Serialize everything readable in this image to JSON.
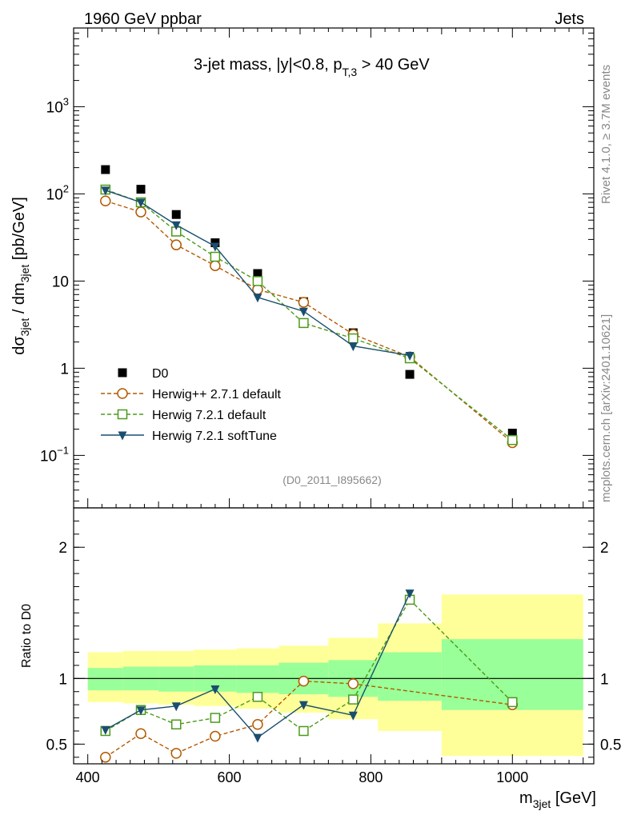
{
  "header": {
    "left": "1960 GeV ppbar",
    "right": "Jets"
  },
  "side_text": {
    "rivet": "Rivet 4.1.0, ≥ 3.7M events",
    "mcplots": "mcplots.cern.ch [arXiv:2401.10621]"
  },
  "chart_data": [
    {
      "type": "scatter",
      "panel": "main",
      "title": "3-jet mass, |y|<0.8, p",
      "title_sub": "T,3",
      "title_tail": " > 40 GeV",
      "watermark": "(D0_2011_I895662)",
      "ylabel": "dσ",
      "ylabel_sub1": "3jet",
      "ylabel_mid": " / dm",
      "ylabel_sub2": "3jet",
      "ylabel_tail": " [pb/GeV]",
      "yscale": "log",
      "ylim": [
        0.025,
        8000
      ],
      "xlim": [
        380,
        1115
      ],
      "y_ticks": [
        {
          "value": 1000,
          "base": "10",
          "exp": "3"
        },
        {
          "value": 100,
          "base": "10",
          "exp": "2"
        },
        {
          "value": 10,
          "base": "10",
          "exp": ""
        },
        {
          "value": 1,
          "base": "1",
          "exp": ""
        },
        {
          "value": 0.1,
          "base": "10",
          "exp": "−1"
        }
      ],
      "legend_position": "lower-left",
      "series": [
        {
          "name": "D0",
          "color": "#000000",
          "marker": "square-filled",
          "line": "none",
          "x": [
            425,
            475,
            525,
            580,
            640,
            705,
            775,
            855,
            1000
          ],
          "y": [
            190,
            113,
            58,
            27.5,
            12.2,
            5.8,
            2.55,
            0.85,
            0.18
          ]
        },
        {
          "name": "Herwig++ 2.7.1 default",
          "color": "#b35900",
          "marker": "circle-open",
          "line": "dashed",
          "x": [
            425,
            475,
            525,
            580,
            640,
            705,
            775,
            855,
            1000
          ],
          "y": [
            83,
            62,
            26,
            15,
            8,
            5.7,
            2.45,
            1.35,
            0.14
          ]
        },
        {
          "name": "Herwig 7.2.1 default",
          "color": "#4c9a1a",
          "marker": "square-open",
          "line": "dashed",
          "x": [
            425,
            475,
            525,
            580,
            640,
            705,
            775,
            855,
            1000
          ],
          "y": [
            112,
            80,
            37,
            19,
            10,
            3.3,
            2.2,
            1.3,
            0.15
          ]
        },
        {
          "name": "Herwig 7.2.1 softTune",
          "color": "#1a4e6e",
          "marker": "triangle-down-filled",
          "line": "solid",
          "x": [
            425,
            475,
            525,
            580,
            640,
            705,
            775,
            855
          ],
          "y": [
            110,
            80,
            44,
            25,
            6.5,
            4.5,
            1.8,
            1.4
          ]
        }
      ]
    },
    {
      "type": "scatter",
      "panel": "ratio",
      "ylabel": "Ratio to D0",
      "xlabel": "m",
      "xlabel_sub": "3jet",
      "xlabel_tail": " [GeV]",
      "ylim": [
        0.35,
        2.3
      ],
      "xlim": [
        380,
        1115
      ],
      "x_ticks": [
        400,
        600,
        800,
        1000
      ],
      "y_ticks": [
        0.5,
        1,
        2
      ],
      "bands": {
        "x_edges": [
          400,
          450,
          500,
          550,
          610,
          670,
          740,
          810,
          900,
          1100
        ],
        "inner_low": [
          0.91,
          0.91,
          0.9,
          0.9,
          0.89,
          0.88,
          0.86,
          0.83,
          0.76
        ],
        "inner_high": [
          1.08,
          1.09,
          1.09,
          1.1,
          1.1,
          1.12,
          1.14,
          1.2,
          1.3
        ],
        "outer_low": [
          0.82,
          0.81,
          0.8,
          0.79,
          0.77,
          0.74,
          0.69,
          0.6,
          0.41
        ],
        "outer_high": [
          1.2,
          1.21,
          1.21,
          1.22,
          1.23,
          1.25,
          1.31,
          1.42,
          1.64
        ]
      },
      "series": [
        {
          "name": "Herwig++ 2.7.1 default",
          "color": "#b35900",
          "marker": "circle-open",
          "line": "dashed",
          "x": [
            425,
            475,
            525,
            580,
            640,
            705,
            775,
            1000
          ],
          "y": [
            0.4,
            0.58,
            0.43,
            0.56,
            0.65,
            0.98,
            0.96,
            0.8
          ]
        },
        {
          "name": "Herwig 7.2.1 default",
          "color": "#4c9a1a",
          "marker": "square-open",
          "line": "dashed",
          "x": [
            425,
            475,
            525,
            580,
            640,
            705,
            775,
            855,
            1000
          ],
          "y": [
            0.6,
            0.76,
            0.65,
            0.7,
            0.86,
            0.6,
            0.84,
            1.6,
            0.82
          ]
        },
        {
          "name": "Herwig 7.2.1 softTune",
          "color": "#1a4e6e",
          "marker": "triangle-down-filled",
          "line": "solid",
          "x": [
            425,
            475,
            525,
            580,
            640,
            705,
            775,
            855
          ],
          "y": [
            0.61,
            0.76,
            0.79,
            0.92,
            0.55,
            0.8,
            0.72,
            1.65
          ]
        }
      ]
    }
  ]
}
